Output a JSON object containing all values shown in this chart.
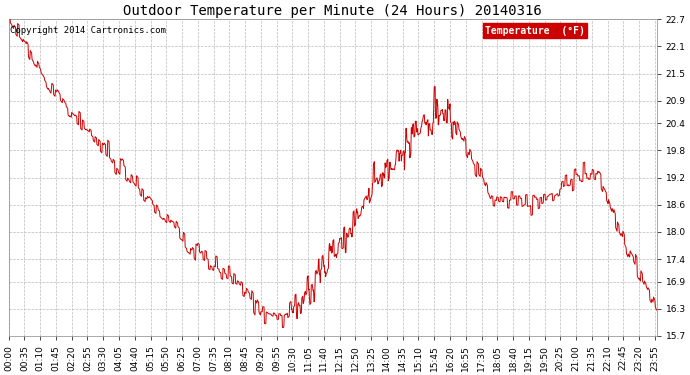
{
  "title": "Outdoor Temperature per Minute (24 Hours) 20140316",
  "copyright_text": "Copyright 2014 Cartronics.com",
  "legend_label": "Temperature  (°F)",
  "legend_bg": "#cc0000",
  "legend_text_color": "#ffffff",
  "line_color": "#cc0000",
  "bg_color": "#ffffff",
  "grid_color": "#bbbbbb",
  "grid_style": "--",
  "ylim": [
    15.7,
    22.7
  ],
  "yticks": [
    15.7,
    16.3,
    16.9,
    17.4,
    18.0,
    18.6,
    19.2,
    19.8,
    20.4,
    20.9,
    21.5,
    22.1,
    22.7
  ],
  "title_fontsize": 10,
  "tick_fontsize": 6.5,
  "copyright_fontsize": 6.5
}
